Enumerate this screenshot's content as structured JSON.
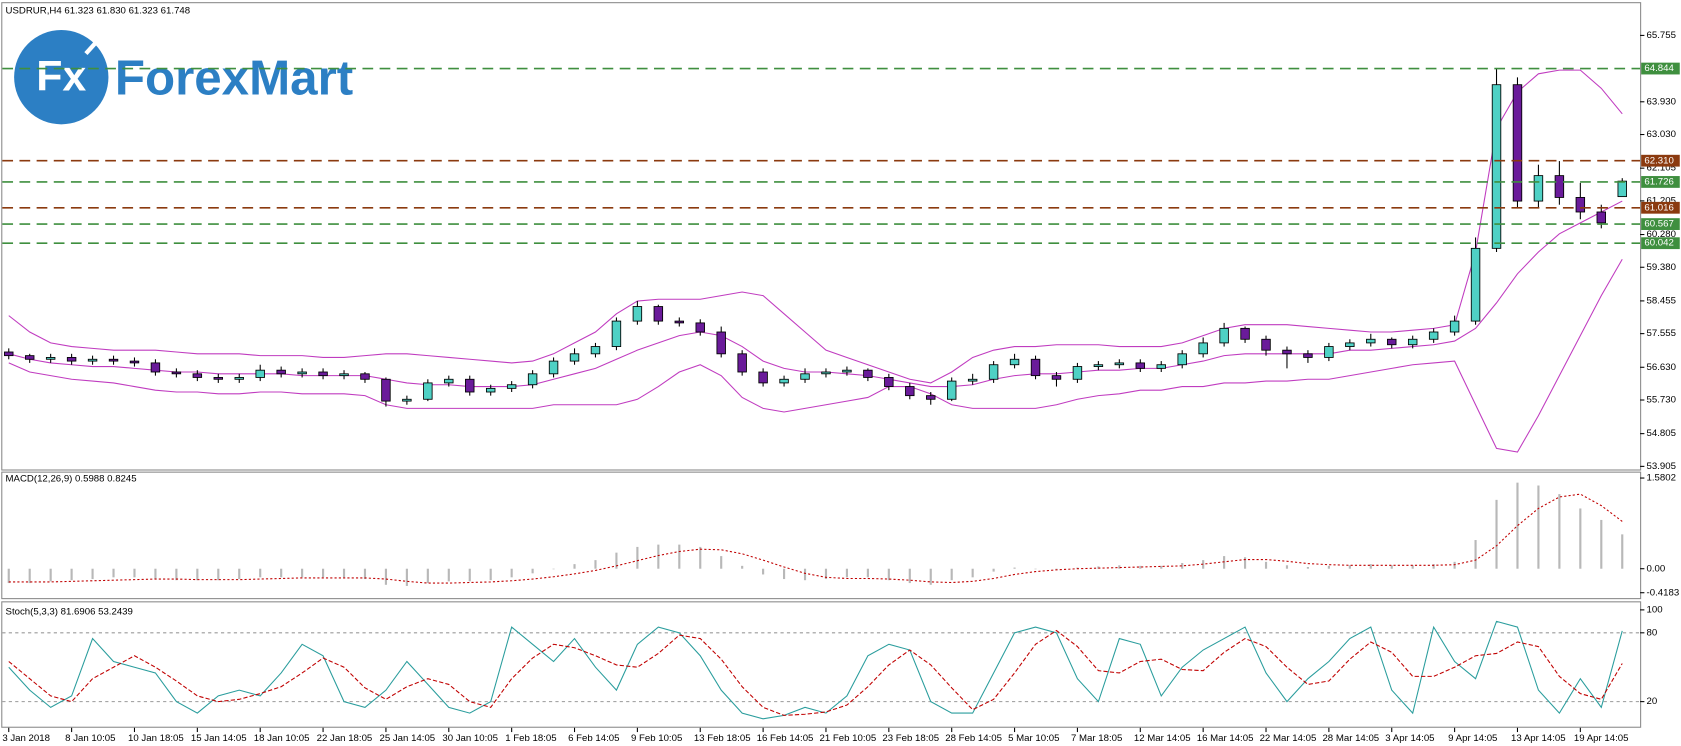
{
  "watermark": {
    "mark": "Fx",
    "brand": "ForexMart"
  },
  "chart_data": [
    {
      "type": "candlestick",
      "title": "USDRUR,H4  61.323 61.830 61.323 61.748",
      "categories": [
        "3 Jan 2018",
        null,
        null,
        "8 Jan 10:05",
        null,
        null,
        "10 Jan 18:05",
        null,
        null,
        "15 Jan 14:05",
        null,
        null,
        "18 Jan 10:05",
        null,
        null,
        "22 Jan 18:05",
        null,
        null,
        "25 Jan 14:05",
        null,
        null,
        "30 Jan 10:05",
        null,
        null,
        "1 Feb 18:05",
        null,
        null,
        "6 Feb 14:05",
        null,
        null,
        "9 Feb 10:05",
        null,
        null,
        "13 Feb 18:05",
        null,
        null,
        "16 Feb 14:05",
        null,
        null,
        "21 Feb 10:05",
        null,
        null,
        "23 Feb 18:05",
        null,
        null,
        "28 Feb 14:05",
        null,
        null,
        "5 Mar 10:05",
        null,
        null,
        "7 Mar 18:05",
        null,
        null,
        "12 Mar 14:05",
        null,
        null,
        "16 Mar 14:05",
        null,
        null,
        "22 Mar 14:05",
        null,
        null,
        "28 Mar 14:05",
        null,
        null,
        "3 Apr 14:05",
        null,
        null,
        "9 Apr 14:05",
        null,
        null,
        "13 Apr 14:05",
        null,
        null,
        "19 Apr 14:05",
        null,
        null
      ],
      "open": [
        57.05,
        56.95,
        56.85,
        56.9,
        56.8,
        56.85,
        56.8,
        56.75,
        56.5,
        56.45,
        56.35,
        56.3,
        56.35,
        56.55,
        56.45,
        56.5,
        56.4,
        56.45,
        56.3,
        55.7,
        55.75,
        56.2,
        56.3,
        55.95,
        56.05,
        56.15,
        56.45,
        56.8,
        57.0,
        57.2,
        57.9,
        58.3,
        57.9,
        57.85,
        57.6,
        57.0,
        56.5,
        56.2,
        56.3,
        56.45,
        56.5,
        56.55,
        56.35,
        56.1,
        55.85,
        55.75,
        56.25,
        56.3,
        56.7,
        56.85,
        56.4,
        56.3,
        56.65,
        56.7,
        56.75,
        56.6,
        56.7,
        57.0,
        57.3,
        57.7,
        57.4,
        57.1,
        57.0,
        56.9,
        57.2,
        57.3,
        57.4,
        57.25,
        57.4,
        57.6,
        57.9,
        59.9,
        64.4,
        61.2,
        61.9,
        61.3,
        60.9,
        61.323
      ],
      "high": [
        57.15,
        57.0,
        57.0,
        57.0,
        56.95,
        56.95,
        56.9,
        56.85,
        56.6,
        56.55,
        56.45,
        56.45,
        56.7,
        56.65,
        56.6,
        56.6,
        56.55,
        56.5,
        56.35,
        55.85,
        56.3,
        56.4,
        56.4,
        56.15,
        56.25,
        56.55,
        56.9,
        57.15,
        57.3,
        58.0,
        58.45,
        58.35,
        58.0,
        57.95,
        57.75,
        57.1,
        56.6,
        56.4,
        56.6,
        56.6,
        56.65,
        56.6,
        56.45,
        56.2,
        55.95,
        56.35,
        56.45,
        56.8,
        57.0,
        56.95,
        56.5,
        56.75,
        56.8,
        56.85,
        56.85,
        56.8,
        57.1,
        57.45,
        57.85,
        57.75,
        57.5,
        57.2,
        57.1,
        57.3,
        57.4,
        57.55,
        57.45,
        57.5,
        57.7,
        58.05,
        60.2,
        64.84,
        64.6,
        62.2,
        62.3,
        61.7,
        61.1,
        61.83
      ],
      "low": [
        56.85,
        56.75,
        56.75,
        56.7,
        56.7,
        56.7,
        56.65,
        56.4,
        56.35,
        56.25,
        56.2,
        56.2,
        56.25,
        56.35,
        56.35,
        56.3,
        56.3,
        56.2,
        55.55,
        55.6,
        55.7,
        56.1,
        55.85,
        55.85,
        55.95,
        56.05,
        56.35,
        56.7,
        56.9,
        57.1,
        57.8,
        57.8,
        57.75,
        57.5,
        56.9,
        56.4,
        56.1,
        56.1,
        56.2,
        56.35,
        56.4,
        56.25,
        56.0,
        55.75,
        55.6,
        55.7,
        56.15,
        56.2,
        56.6,
        56.3,
        56.1,
        56.2,
        56.55,
        56.6,
        56.5,
        56.5,
        56.6,
        56.9,
        57.2,
        57.3,
        56.95,
        56.6,
        56.75,
        56.8,
        57.1,
        57.2,
        57.15,
        57.15,
        57.3,
        57.5,
        57.8,
        59.8,
        61.0,
        61.0,
        61.1,
        60.7,
        60.45,
        61.323
      ],
      "close": [
        56.95,
        56.85,
        56.9,
        56.8,
        56.85,
        56.8,
        56.75,
        56.5,
        56.45,
        56.35,
        56.3,
        56.35,
        56.55,
        56.45,
        56.5,
        56.4,
        56.45,
        56.3,
        55.7,
        55.75,
        56.2,
        56.3,
        55.95,
        56.05,
        56.15,
        56.45,
        56.8,
        57.0,
        57.2,
        57.9,
        58.3,
        57.9,
        57.85,
        57.6,
        57.0,
        56.5,
        56.2,
        56.3,
        56.45,
        56.5,
        56.55,
        56.35,
        56.1,
        55.85,
        55.75,
        56.25,
        56.3,
        56.7,
        56.85,
        56.4,
        56.3,
        56.65,
        56.7,
        56.75,
        56.6,
        56.7,
        57.0,
        57.3,
        57.7,
        57.4,
        57.1,
        57.0,
        56.9,
        57.2,
        57.3,
        57.4,
        57.25,
        57.4,
        57.6,
        57.9,
        59.9,
        64.4,
        61.2,
        61.9,
        61.3,
        60.9,
        60.6,
        61.748
      ],
      "up_color": "#4fd1c5",
      "down_color": "#6a1b9a",
      "series": [
        {
          "color": "#c03cc0",
          "values": [
            58.05,
            57.6,
            57.3,
            57.2,
            57.15,
            57.1,
            57.1,
            57.1,
            57.05,
            57.0,
            57.0,
            57.0,
            56.95,
            56.95,
            56.95,
            56.9,
            56.9,
            56.95,
            57.0,
            57.0,
            56.95,
            56.9,
            56.85,
            56.8,
            56.75,
            56.8,
            57.0,
            57.3,
            57.6,
            58.1,
            58.45,
            58.5,
            58.5,
            58.5,
            58.6,
            58.7,
            58.6,
            58.1,
            57.6,
            57.1,
            56.9,
            56.7,
            56.5,
            56.3,
            56.2,
            56.5,
            56.9,
            57.1,
            57.2,
            57.2,
            57.25,
            57.25,
            57.25,
            57.2,
            57.2,
            57.2,
            57.3,
            57.5,
            57.7,
            57.8,
            57.8,
            57.8,
            57.75,
            57.7,
            57.65,
            57.6,
            57.6,
            57.65,
            57.7,
            57.8,
            59.8,
            63.2,
            64.2,
            64.7,
            64.8,
            64.8,
            64.3,
            63.6
          ]
        },
        {
          "color": "#c03cc0",
          "values": [
            57.0,
            56.85,
            56.75,
            56.7,
            56.65,
            56.65,
            56.6,
            56.55,
            56.5,
            56.5,
            56.45,
            56.45,
            56.45,
            56.45,
            56.4,
            56.4,
            56.4,
            56.4,
            56.3,
            56.2,
            56.15,
            56.15,
            56.1,
            56.1,
            56.1,
            56.15,
            56.3,
            56.45,
            56.6,
            56.85,
            57.1,
            57.3,
            57.5,
            57.6,
            57.5,
            57.2,
            56.8,
            56.6,
            56.5,
            56.5,
            56.45,
            56.4,
            56.3,
            56.2,
            56.1,
            56.1,
            56.15,
            56.3,
            56.4,
            56.45,
            56.45,
            56.5,
            56.55,
            56.55,
            56.6,
            56.6,
            56.7,
            56.8,
            56.95,
            57.0,
            57.0,
            57.0,
            57.0,
            57.0,
            57.1,
            57.1,
            57.15,
            57.2,
            57.25,
            57.35,
            57.7,
            58.4,
            59.2,
            59.8,
            60.3,
            60.6,
            60.9,
            61.2
          ]
        },
        {
          "color": "#c03cc0",
          "values": [
            56.75,
            56.5,
            56.4,
            56.3,
            56.25,
            56.2,
            56.1,
            56.0,
            55.95,
            55.95,
            55.9,
            55.9,
            55.95,
            55.95,
            55.9,
            55.9,
            55.9,
            55.85,
            55.6,
            55.5,
            55.5,
            55.5,
            55.5,
            55.5,
            55.5,
            55.5,
            55.6,
            55.6,
            55.6,
            55.6,
            55.75,
            56.1,
            56.5,
            56.7,
            56.4,
            55.8,
            55.5,
            55.4,
            55.5,
            55.6,
            55.7,
            55.8,
            56.1,
            56.1,
            55.9,
            55.6,
            55.5,
            55.5,
            55.5,
            55.5,
            55.6,
            55.75,
            55.85,
            55.9,
            56.0,
            56.0,
            56.1,
            56.1,
            56.2,
            56.2,
            56.25,
            56.25,
            56.3,
            56.3,
            56.4,
            56.5,
            56.6,
            56.7,
            56.75,
            56.8,
            55.6,
            54.4,
            54.3,
            55.3,
            56.4,
            57.5,
            58.6,
            59.6
          ]
        }
      ],
      "ylim": [
        53.82,
        66.67
      ],
      "yticks": [
        65.755,
        {
          "value": 63.93,
          "label": "63.930"
        },
        {
          "value": 63.03,
          "label": "63.030"
        },
        62.105,
        61.205,
        {
          "value": 60.28,
          "label": "60.280"
        },
        {
          "value": 59.38,
          "label": "59.380"
        },
        58.455,
        57.555,
        {
          "value": 56.63,
          "label": "56.630"
        },
        {
          "value": 55.73,
          "label": "55.730"
        },
        54.805,
        53.905
      ],
      "levels": [
        {
          "value": 64.844,
          "color": "#3f8f3f"
        },
        {
          "value": 62.31,
          "label": "62.310",
          "color": "#8b3a0f"
        },
        {
          "value": 61.726,
          "color": "#3f8f3f"
        },
        {
          "value": 61.016,
          "color": "#8b3a0f"
        },
        {
          "value": 60.567,
          "color": "#3f8f3f"
        },
        {
          "value": 60.042,
          "color": "#3f8f3f"
        }
      ]
    },
    {
      "type": "macd",
      "title": "MACD(12,26,9) 0.5988 0.8245",
      "series": [
        {
          "color": "#b8b8b8",
          "style": "histogram",
          "values": [
            -0.25,
            -0.25,
            -0.22,
            -0.2,
            -0.18,
            -0.15,
            -0.15,
            -0.18,
            -0.2,
            -0.2,
            -0.2,
            -0.18,
            -0.15,
            -0.15,
            -0.15,
            -0.15,
            -0.15,
            -0.18,
            -0.28,
            -0.3,
            -0.25,
            -0.22,
            -0.22,
            -0.2,
            -0.15,
            -0.08,
            0.0,
            0.08,
            0.15,
            0.28,
            0.38,
            0.42,
            0.42,
            0.38,
            0.22,
            0.05,
            -0.1,
            -0.18,
            -0.2,
            -0.18,
            -0.15,
            -0.15,
            -0.2,
            -0.25,
            -0.28,
            -0.2,
            -0.15,
            -0.05,
            0.02,
            0.0,
            -0.02,
            0.02,
            0.04,
            0.06,
            0.05,
            0.05,
            0.1,
            0.15,
            0.22,
            0.2,
            0.12,
            0.06,
            0.03,
            0.05,
            0.06,
            0.08,
            0.06,
            0.06,
            0.08,
            0.12,
            0.5,
            1.2,
            1.5,
            1.45,
            1.3,
            1.05,
            0.85,
            0.5988
          ]
        },
        {
          "color": "#c00000",
          "style": "dotted",
          "values": [
            -0.23,
            -0.23,
            -0.23,
            -0.22,
            -0.21,
            -0.2,
            -0.19,
            -0.18,
            -0.18,
            -0.19,
            -0.19,
            -0.19,
            -0.18,
            -0.17,
            -0.16,
            -0.16,
            -0.16,
            -0.16,
            -0.18,
            -0.22,
            -0.25,
            -0.25,
            -0.24,
            -0.23,
            -0.21,
            -0.18,
            -0.14,
            -0.09,
            -0.03,
            0.05,
            0.14,
            0.23,
            0.3,
            0.34,
            0.33,
            0.26,
            0.15,
            0.03,
            -0.08,
            -0.15,
            -0.17,
            -0.17,
            -0.18,
            -0.2,
            -0.23,
            -0.24,
            -0.22,
            -0.17,
            -0.1,
            -0.05,
            -0.02,
            0.0,
            0.01,
            0.02,
            0.03,
            0.04,
            0.05,
            0.08,
            0.12,
            0.16,
            0.16,
            0.13,
            0.09,
            0.07,
            0.06,
            0.06,
            0.06,
            0.06,
            0.06,
            0.07,
            0.15,
            0.4,
            0.75,
            1.05,
            1.25,
            1.3,
            1.1,
            0.8245
          ]
        }
      ],
      "ylim": [
        -0.4183,
        1.5802
      ],
      "yticks": [
        1.5802,
        {
          "value": 0,
          "label": "0.00"
        },
        -0.4183
      ]
    },
    {
      "type": "stochastic",
      "title": "Stoch(5,3,3) 81.6906 53.2439",
      "series": [
        {
          "color": "#2a9d9d",
          "style": "solid",
          "values": [
            50,
            30,
            15,
            25,
            75,
            55,
            50,
            45,
            20,
            10,
            25,
            30,
            25,
            45,
            70,
            60,
            20,
            15,
            30,
            55,
            35,
            15,
            10,
            20,
            85,
            70,
            55,
            75,
            50,
            30,
            70,
            85,
            80,
            60,
            30,
            10,
            5,
            8,
            15,
            10,
            25,
            60,
            70,
            65,
            20,
            10,
            10,
            45,
            80,
            85,
            80,
            40,
            20,
            75,
            70,
            25,
            50,
            65,
            75,
            85,
            45,
            20,
            40,
            55,
            75,
            85,
            30,
            10,
            85,
            55,
            40,
            90,
            85,
            30,
            10,
            40,
            15,
            81.6906
          ]
        },
        {
          "color": "#c00000",
          "style": "dashed",
          "values": [
            55,
            40,
            25,
            20,
            40,
            50,
            60,
            50,
            38,
            25,
            20,
            22,
            27,
            33,
            45,
            58,
            50,
            32,
            22,
            33,
            40,
            35,
            20,
            15,
            40,
            58,
            70,
            67,
            60,
            52,
            50,
            62,
            78,
            75,
            57,
            33,
            15,
            8,
            9,
            11,
            17,
            33,
            52,
            65,
            52,
            32,
            13,
            22,
            45,
            70,
            82,
            68,
            47,
            45,
            55,
            57,
            48,
            47,
            63,
            75,
            68,
            50,
            35,
            38,
            57,
            72,
            63,
            42,
            42,
            50,
            60,
            62,
            72,
            68,
            42,
            27,
            22,
            53.2439
          ]
        }
      ],
      "ylim": [
        0,
        100
      ],
      "yticks": [
        100,
        80,
        20
      ],
      "levels": [
        80,
        20
      ]
    }
  ]
}
